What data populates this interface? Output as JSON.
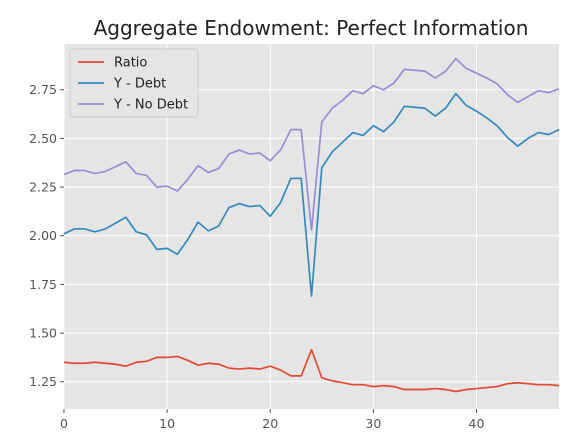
{
  "chart_data": {
    "type": "line",
    "title": "Aggregate Endowment: Perfect Information",
    "xlabel": "",
    "ylabel": "",
    "xlim": [
      0,
      48
    ],
    "ylim": [
      1.11,
      2.985
    ],
    "xticks": [
      0,
      10,
      20,
      30,
      40
    ],
    "yticks": [
      1.25,
      1.5,
      1.75,
      2.0,
      2.25,
      2.5,
      2.75
    ],
    "grid": true,
    "legend_position": "top-left",
    "x": [
      0,
      1,
      2,
      3,
      4,
      5,
      6,
      7,
      8,
      9,
      10,
      11,
      12,
      13,
      14,
      15,
      16,
      17,
      18,
      19,
      20,
      21,
      22,
      23,
      24,
      25,
      26,
      27,
      28,
      29,
      30,
      31,
      32,
      33,
      34,
      35,
      36,
      37,
      38,
      39,
      40,
      41,
      42,
      43,
      44,
      45,
      46,
      47,
      48
    ],
    "series": [
      {
        "name": "Ratio",
        "color": "#E24A33",
        "values": [
          1.35,
          1.345,
          1.345,
          1.35,
          1.345,
          1.34,
          1.33,
          1.35,
          1.355,
          1.375,
          1.375,
          1.38,
          1.36,
          1.335,
          1.345,
          1.34,
          1.32,
          1.315,
          1.32,
          1.315,
          1.33,
          1.31,
          1.28,
          1.28,
          1.415,
          1.27,
          1.255,
          1.245,
          1.235,
          1.235,
          1.225,
          1.23,
          1.225,
          1.21,
          1.21,
          1.21,
          1.215,
          1.21,
          1.2,
          1.21,
          1.215,
          1.22,
          1.225,
          1.24,
          1.245,
          1.24,
          1.235,
          1.235,
          1.23
        ]
      },
      {
        "name": "Y - Debt",
        "color": "#348ABD",
        "values": [
          2.01,
          2.035,
          2.035,
          2.02,
          2.035,
          2.065,
          2.095,
          2.02,
          2.005,
          1.93,
          1.935,
          1.905,
          1.98,
          2.07,
          2.025,
          2.05,
          2.145,
          2.165,
          2.15,
          2.155,
          2.1,
          2.17,
          2.295,
          2.295,
          1.69,
          2.35,
          2.43,
          2.48,
          2.53,
          2.515,
          2.565,
          2.535,
          2.585,
          2.665,
          2.66,
          2.655,
          2.615,
          2.655,
          2.73,
          2.67,
          2.64,
          2.605,
          2.565,
          2.505,
          2.46,
          2.5,
          2.53,
          2.52,
          2.545
        ]
      },
      {
        "name": "Y - No Debt",
        "color": "#988ED5",
        "values": [
          2.315,
          2.335,
          2.335,
          2.32,
          2.33,
          2.355,
          2.38,
          2.32,
          2.31,
          2.25,
          2.255,
          2.23,
          2.29,
          2.36,
          2.325,
          2.345,
          2.42,
          2.44,
          2.42,
          2.425,
          2.385,
          2.44,
          2.545,
          2.545,
          2.03,
          2.585,
          2.655,
          2.695,
          2.745,
          2.73,
          2.77,
          2.75,
          2.785,
          2.855,
          2.85,
          2.845,
          2.81,
          2.845,
          2.91,
          2.86,
          2.835,
          2.81,
          2.78,
          2.725,
          2.685,
          2.715,
          2.745,
          2.735,
          2.755
        ]
      }
    ]
  }
}
